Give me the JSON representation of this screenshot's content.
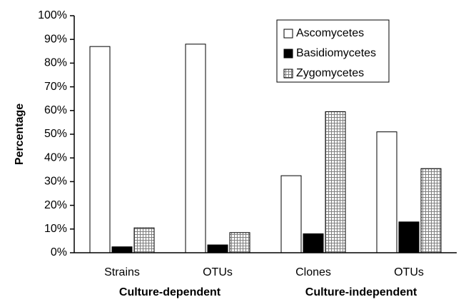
{
  "chart_data": {
    "type": "bar",
    "y_label": "Percentage",
    "categories": [
      "Strains",
      "OTUs",
      "Clones",
      "OTUs"
    ],
    "group_labels": [
      "Culture-dependent",
      "Culture-independent"
    ],
    "series": [
      {
        "name": "Ascomycetes",
        "color": "#ffffff",
        "values": [
          87,
          88,
          32.5,
          51
        ]
      },
      {
        "name": "Basidiomycetes",
        "color": "#000000",
        "values": [
          2.5,
          3.3,
          8,
          13
        ]
      },
      {
        "name": "Zygomycetes",
        "color": "#7f7f7f",
        "pattern": "grid",
        "values": [
          10.5,
          8.5,
          59.5,
          35.5
        ]
      }
    ],
    "ylim": [
      0,
      100
    ],
    "yticks": [
      {
        "value": 0,
        "label": "0%"
      },
      {
        "value": 10,
        "label": "10%"
      },
      {
        "value": 20,
        "label": "20%"
      },
      {
        "value": 30,
        "label": "30%"
      },
      {
        "value": 40,
        "label": "40%"
      },
      {
        "value": 50,
        "label": "50%"
      },
      {
        "value": 60,
        "label": "60%"
      },
      {
        "value": 70,
        "label": "70%"
      },
      {
        "value": 80,
        "label": "80%"
      },
      {
        "value": 90,
        "label": "90%"
      },
      {
        "value": 100,
        "label": "100%"
      }
    ],
    "grid": false,
    "legend": "upper right"
  }
}
